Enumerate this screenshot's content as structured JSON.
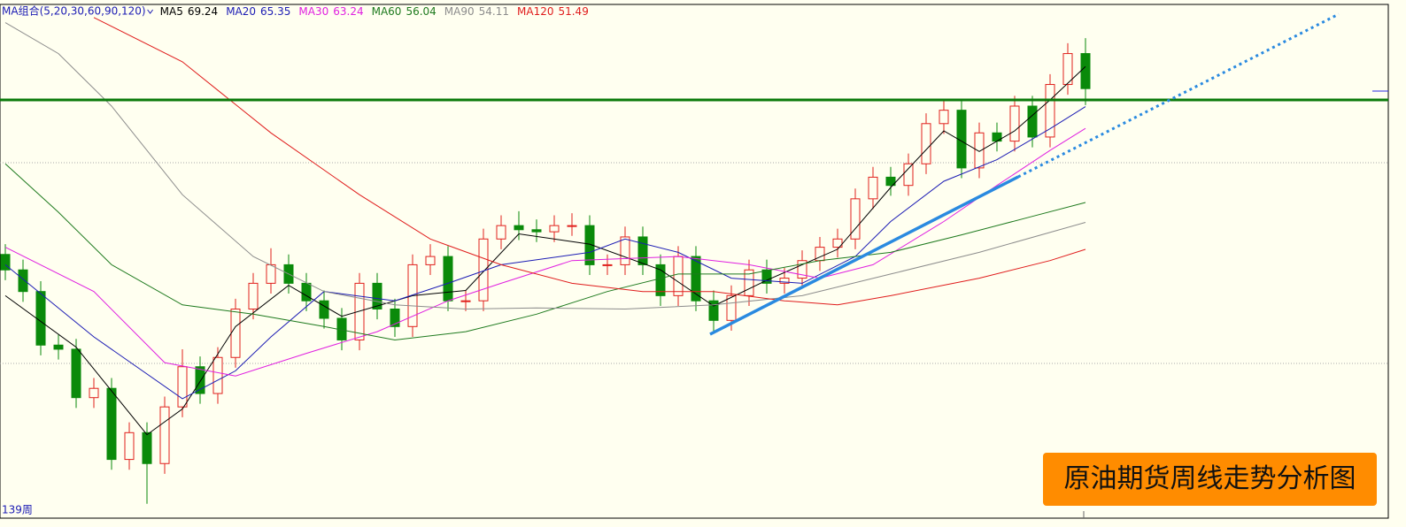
{
  "chart_data": {
    "type": "candlestick",
    "legend_title": "MA组合(5,20,30,60,90,120)",
    "period_label": "139周",
    "annotation": "原油期货周线走势分析图",
    "up_color": "#e0201c",
    "down_color": "#0a8a0a",
    "ylim": [
      25.4,
      75.7
    ],
    "open": [
      51,
      49.5,
      47.4,
      42.2,
      41.8,
      37.1,
      38,
      31.1,
      33.7,
      30.7,
      36.2,
      40.1,
      37.5,
      41,
      45.7,
      48.2,
      50,
      48.2,
      46.5,
      44.8,
      42.7,
      48.2,
      45.7,
      44,
      50,
      50.8,
      46.5,
      46.5,
      52.5,
      53.8,
      53.4,
      53.2,
      53.8,
      53.8,
      50,
      50,
      52.7,
      50,
      47,
      50.8,
      46.5,
      44.6,
      47,
      49.5,
      48.2,
      48.7,
      50.4,
      51.7,
      52.5,
      56.4,
      58.5,
      57.7,
      59.8,
      63.7,
      65,
      59.4,
      62.8,
      62,
      65.4,
      62.4,
      67.5,
      70.5
    ],
    "close": [
      49.5,
      47.4,
      42.2,
      41.8,
      37.1,
      38,
      31.1,
      33.7,
      30.7,
      36.2,
      40.1,
      37.5,
      41,
      45.7,
      48.2,
      50,
      48.2,
      46.5,
      44.8,
      42.7,
      48.2,
      45.7,
      44,
      50,
      50.8,
      46.5,
      46.5,
      52.5,
      53.8,
      53.4,
      53.2,
      53.8,
      53.8,
      50,
      50,
      52.7,
      50,
      47,
      50.8,
      46.5,
      44.6,
      47,
      49.5,
      48.2,
      48.7,
      50.4,
      51.7,
      52.5,
      56.4,
      58.5,
      57.7,
      59.8,
      63.7,
      65,
      59.4,
      62.8,
      62,
      65.4,
      62.4,
      67.5,
      70.5,
      67.1
    ],
    "high": [
      52,
      50.5,
      48.4,
      43.2,
      42.8,
      39,
      39,
      34.7,
      34.7,
      37.2,
      41.8,
      41.1,
      42,
      46.7,
      49.2,
      51.6,
      51,
      49.2,
      47.5,
      45.8,
      49.2,
      49.2,
      46.7,
      51,
      52,
      51.8,
      47.5,
      53.5,
      54.8,
      55.2,
      54.4,
      54.8,
      55,
      54.8,
      51,
      53.7,
      53.7,
      51,
      51.8,
      51.8,
      47.5,
      48,
      50.5,
      50.5,
      49.7,
      51.4,
      52.7,
      53.5,
      57.4,
      59.5,
      59.5,
      60.8,
      64.7,
      66,
      66,
      63.8,
      63.8,
      66.4,
      66.4,
      68.5,
      71.5,
      72
    ],
    "low": [
      48.5,
      46.4,
      41.2,
      40.8,
      36.1,
      36.1,
      30.1,
      30.1,
      26.8,
      29.7,
      35.2,
      36.5,
      36.5,
      40,
      44.7,
      47.2,
      47.2,
      45.5,
      43.8,
      41.7,
      41.7,
      44.7,
      43,
      43,
      49,
      45.5,
      45.5,
      45.5,
      51.5,
      52.4,
      52.2,
      52.2,
      52.8,
      49,
      49,
      49,
      49,
      46,
      46,
      45.5,
      43.3,
      43.6,
      46,
      47.2,
      47.2,
      47.7,
      49.4,
      50.7,
      51.5,
      55.4,
      56.7,
      56.7,
      58.8,
      62.7,
      58.4,
      58.4,
      61,
      61,
      61.4,
      61.4,
      66.5,
      65.5
    ],
    "series": [
      {
        "name": "MA5",
        "color": "#000000",
        "x": [
          0,
          4,
          8,
          10,
          13,
          16,
          19,
          23,
          26,
          29,
          33,
          37,
          40,
          43,
          47,
          50,
          53,
          55,
          57,
          59,
          61
        ],
        "values": [
          47,
          42,
          33.5,
          36,
          44,
          48,
          45,
          47,
          47.5,
          53,
          52,
          49.5,
          46,
          48.5,
          51.5,
          57.5,
          63,
          61,
          63,
          66,
          69.24
        ]
      },
      {
        "name": "MA20",
        "color": "#1c1cb4",
        "x": [
          0,
          5,
          10,
          13,
          15,
          18,
          22,
          25,
          28,
          33,
          35,
          38,
          41,
          45,
          48,
          50,
          53,
          56,
          59,
          61
        ],
        "values": [
          50,
          43,
          37,
          39.7,
          43,
          47.4,
          46.5,
          48.2,
          50,
          51.2,
          52.5,
          51.2,
          48.7,
          48.2,
          50.8,
          54.2,
          58.1,
          60.2,
          63.2,
          65.35
        ]
      },
      {
        "name": "MA30",
        "color": "#e020e0",
        "x": [
          0,
          5,
          9,
          13,
          17,
          21,
          25,
          28,
          32,
          38,
          42,
          46,
          49,
          53,
          56,
          59,
          61
        ],
        "values": [
          51.7,
          47.4,
          40.5,
          39.2,
          41.4,
          43.5,
          46.5,
          48.2,
          50.4,
          50.8,
          50,
          48.7,
          50,
          54.2,
          57.7,
          61.1,
          63.24
        ]
      },
      {
        "name": "MA60",
        "color": "#1e7a1e",
        "x": [
          0,
          3,
          6,
          10,
          14,
          18,
          22,
          26,
          30,
          34,
          38,
          42,
          46,
          50,
          54,
          58,
          61
        ],
        "values": [
          59.8,
          55.1,
          50,
          46.1,
          45.2,
          44,
          42.7,
          43.5,
          45.2,
          47.4,
          49.1,
          49.1,
          50.4,
          51.2,
          52.9,
          54.7,
          56.04
        ]
      },
      {
        "name": "MA90",
        "color": "#8c8c8c",
        "x": [
          0,
          3,
          6,
          10,
          14,
          18,
          22,
          26,
          30,
          35,
          40,
          45,
          50,
          55,
          61
        ],
        "values": [
          73.5,
          70.5,
          65.4,
          56.8,
          50.8,
          47.4,
          46.1,
          45.7,
          45.8,
          45.7,
          46.1,
          47,
          49.1,
          51.2,
          54.11
        ]
      },
      {
        "name": "MA120",
        "color": "#e01c1c",
        "x": [
          5,
          10,
          15,
          20,
          24,
          28,
          32,
          36,
          40,
          44,
          47,
          50,
          55,
          59,
          61
        ],
        "values": [
          74,
          69.7,
          62.8,
          56.8,
          52.5,
          50,
          48.2,
          47.4,
          47.4,
          46.5,
          46.1,
          47,
          48.7,
          50.4,
          51.49
        ]
      }
    ]
  }
}
